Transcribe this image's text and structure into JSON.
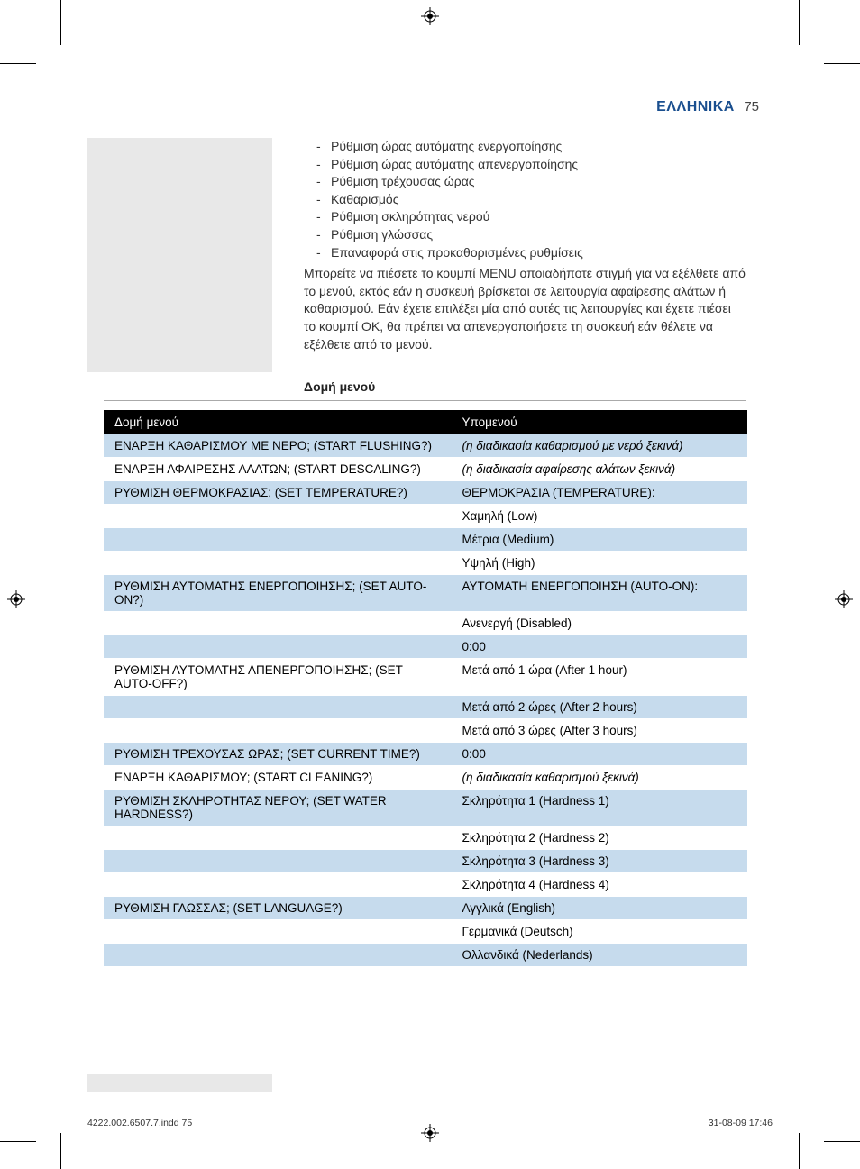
{
  "header": {
    "language": "ΕΛΛΗΝΙΚΑ",
    "page_number": "75"
  },
  "bullets": [
    "Ρύθμιση ώρας αυτόματης ενεργοποίησης",
    "Ρύθμιση ώρας αυτόματης απενεργοποίησης",
    "Ρύθμιση τρέχουσας ώρας",
    "Καθαρισμός",
    "Ρύθμιση σκληρότητας νερού",
    "Ρύθμιση γλώσσας",
    "Επαναφορά στις προκαθορισμένες ρυθμίσεις"
  ],
  "paragraph": "Μπορείτε να πιέσετε το κουμπί MENU οποιαδήποτε στιγμή για να εξέλθετε από το μενού, εκτός εάν η συσκευή βρίσκεται σε λειτουργία αφαίρεσης αλάτων ή καθαρισμού. Εάν έχετε επιλέξει μία από αυτές τις λειτουργίες και έχετε πιέσει το κουμπί OK, θα πρέπει να απενεργοποιήσετε τη συσκευή εάν θέλετε να εξέλθετε από το μενού.",
  "section_heading": "Δομή μενού",
  "table_header": {
    "left": "Δομή μενού",
    "right": "Υπομενού"
  },
  "rows": [
    {
      "left": "ΕΝΑΡΞΗ ΚΑΘΑΡΙΣΜΟΥ ΜΕ ΝΕΡΟ; (START FLUSHING?)",
      "right": "(η διαδικασία καθαρισμού με νερό ξεκινά)",
      "shade": "even",
      "italic": true
    },
    {
      "left": "ΕΝΑΡΞΗ ΑΦΑΙΡΕΣΗΣ ΑΛΑΤΩΝ; (START DESCALING?)",
      "right": "(η διαδικασία αφαίρεσης αλάτων ξεκινά)",
      "shade": "odd",
      "italic": true
    },
    {
      "left": "ΡΥΘΜΙΣΗ ΘΕΡΜΟΚΡΑΣΙΑΣ; (SET TEMPERATURE?)",
      "right": "ΘΕΡΜΟΚΡΑΣΙΑ (TEMPERATURE):",
      "shade": "even",
      "italic": false
    },
    {
      "left": "",
      "right": "Χαμηλή (Low)",
      "shade": "odd",
      "italic": false
    },
    {
      "left": "",
      "right": "Μέτρια (Medium)",
      "shade": "even",
      "italic": false
    },
    {
      "left": "",
      "right": "Υψηλή (High)",
      "shade": "odd",
      "italic": false
    },
    {
      "left": "ΡΥΘΜΙΣΗ ΑΥΤΟΜΑΤΗΣ ΕΝΕΡΓΟΠΟΙΗΣΗΣ; (SET AUTO-ON?)",
      "right": "ΑΥΤΟΜΑΤΗ ΕΝΕΡΓΟΠΟΙΗΣΗ (AUTO-ON):",
      "shade": "even",
      "italic": false
    },
    {
      "left": "",
      "right": "Ανενεργή (Disabled)",
      "shade": "odd",
      "italic": false
    },
    {
      "left": "",
      "right": "0:00",
      "shade": "even",
      "italic": false
    },
    {
      "left": "ΡΥΘΜΙΣΗ ΑΥΤΟΜΑΤΗΣ ΑΠΕΝΕΡΓΟΠΟΙΗΣΗΣ; (SET AUTO-OFF?)",
      "right": "Μετά από 1 ώρα (After 1 hour)",
      "shade": "odd",
      "italic": false
    },
    {
      "left": "",
      "right": "Μετά από 2 ώρες (After 2 hours)",
      "shade": "even",
      "italic": false
    },
    {
      "left": "",
      "right": "Μετά από 3 ώρες (After 3 hours)",
      "shade": "odd",
      "italic": false
    },
    {
      "left": "ΡΥΘΜΙΣΗ ΤΡΕΧΟΥΣΑΣ ΩΡΑΣ; (SET CURRENT TIME?)",
      "right": "0:00",
      "shade": "even",
      "italic": false
    },
    {
      "left": "ΕΝΑΡΞΗ ΚΑΘΑΡΙΣΜΟΥ; (START CLEANING?)",
      "right": "(η διαδικασία καθαρισμού ξεκινά)",
      "shade": "odd",
      "italic": true
    },
    {
      "left": "ΡΥΘΜΙΣΗ ΣΚΛΗΡΟΤΗΤΑΣ ΝΕΡΟΥ; (SET WATER HARDNESS?)",
      "right": "Σκληρότητα 1 (Hardness 1)",
      "shade": "even",
      "italic": false
    },
    {
      "left": "",
      "right": "Σκληρότητα 2 (Hardness 2)",
      "shade": "odd",
      "italic": false
    },
    {
      "left": "",
      "right": "Σκληρότητα 3 (Hardness 3)",
      "shade": "even",
      "italic": false
    },
    {
      "left": "",
      "right": "Σκληρότητα 4 (Hardness 4)",
      "shade": "odd",
      "italic": false
    },
    {
      "left": "ΡΥΘΜΙΣΗ ΓΛΩΣΣΑΣ; (SET LANGUAGE?)",
      "right": "Αγγλικά (English)",
      "shade": "even",
      "italic": false
    },
    {
      "left": "",
      "right": "Γερμανικά (Deutsch)",
      "shade": "odd",
      "italic": false
    },
    {
      "left": "",
      "right": "Ολλανδικά (Nederlands)",
      "shade": "even",
      "italic": false
    }
  ],
  "footer": {
    "left": "4222.002.6507.7.indd   75",
    "right": "31-08-09   17:46"
  },
  "colors": {
    "brand": "#1a4f8f",
    "row_even": "#c6dbed",
    "row_odd": "#ffffff",
    "gray_block": "#e8e8e8",
    "header_bg": "#000000"
  }
}
